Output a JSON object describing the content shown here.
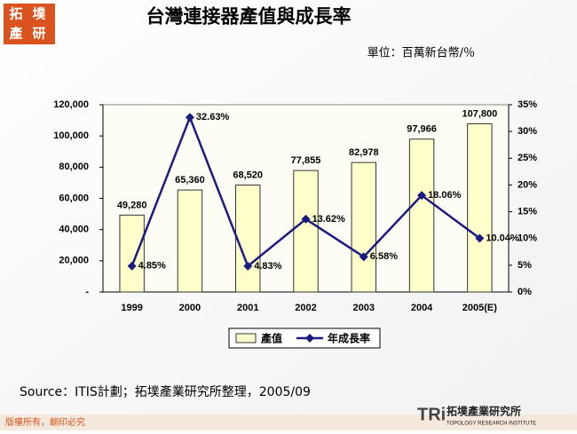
{
  "logo": {
    "characters": [
      "拓",
      "墣",
      "產",
      "研"
    ]
  },
  "chart_data": {
    "type": "bar_line",
    "title": "台灣連接器產值與成長率",
    "unit_label": "單位：百萬新台幣/％",
    "categories": [
      "1999",
      "2000",
      "2001",
      "2002",
      "2003",
      "2004",
      "2005(E)"
    ],
    "series": [
      {
        "name": "產值",
        "type": "bar",
        "color": "#ffffcc",
        "values": [
          49280,
          65360,
          68520,
          77855,
          82978,
          97966,
          107800
        ],
        "value_labels": [
          "49,280",
          "65,360",
          "68,520",
          "77,855",
          "82,978",
          "97,966",
          "107,800"
        ]
      },
      {
        "name": "年成長率",
        "type": "line",
        "axis": "y2",
        "color": "#1a1a80",
        "values": [
          4.85,
          32.63,
          4.83,
          13.62,
          6.58,
          18.06,
          10.04
        ],
        "value_labels": [
          "4.85%",
          "32.63%",
          "4.83%",
          "13.62%",
          "6.58%",
          "18.06%",
          "10.04%"
        ]
      }
    ],
    "ylim": [
      0,
      120000
    ],
    "yticks": [
      {
        "value": 0,
        "label": "-"
      },
      {
        "value": 20000,
        "label": "20,000"
      },
      {
        "value": 40000,
        "label": "40,000"
      },
      {
        "value": 60000,
        "label": "60,000"
      },
      {
        "value": 80000,
        "label": "80,000"
      },
      {
        "value": 100000,
        "label": "100,000"
      },
      {
        "value": 120000,
        "label": "120,000"
      }
    ],
    "y2lim": [
      0,
      35
    ],
    "y2ticks": [
      {
        "value": 0,
        "label": "0%"
      },
      {
        "value": 5,
        "label": "5%"
      },
      {
        "value": 10,
        "label": "10%"
      },
      {
        "value": 15,
        "label": "15%"
      },
      {
        "value": 20,
        "label": "20%"
      },
      {
        "value": 25,
        "label": "25%"
      },
      {
        "value": 30,
        "label": "30%"
      },
      {
        "value": 35,
        "label": "35%"
      }
    ],
    "grid": false,
    "legend": "bottom"
  },
  "source": "Source：ITIS計劃；拓墣產業研究所整理，2005/09",
  "footer": {
    "copyright": "版權所有，翻印必究",
    "brand_mark": "TRi",
    "brand_name": "拓墣產業研究所",
    "brand_english": "TOPOLOGY RESEARCH INSTITUTE"
  }
}
